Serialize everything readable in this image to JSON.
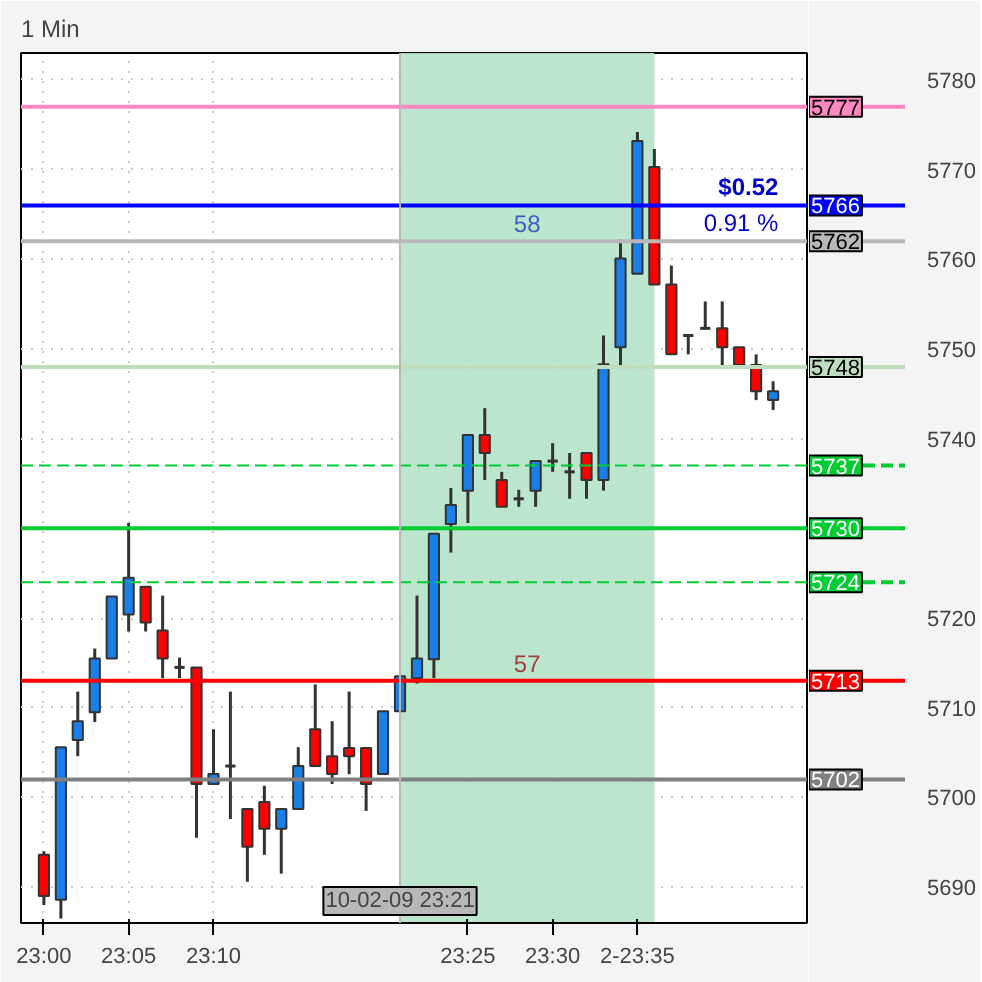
{
  "chart_data": {
    "type": "candlestick",
    "title": "1 Min",
    "x": [
      23.0,
      23.0167,
      23.0333,
      23.05,
      23.0667,
      23.0833,
      23.1,
      23.1167,
      23.1333,
      23.15,
      23.1667,
      23.1833,
      23.2,
      23.2167,
      23.2333,
      23.25,
      23.2667,
      23.2833,
      23.3,
      23.3167,
      23.3333,
      23.35,
      23.3667,
      23.3833,
      23.4,
      23.4167,
      23.4333,
      23.45,
      23.4667,
      23.4833,
      23.5,
      23.5167,
      23.5333,
      23.55,
      23.5667,
      23.5833,
      23.6,
      23.6167,
      23.6333,
      23.65,
      23.6667,
      23.6833,
      23.7,
      23.7167
    ],
    "ohlc": [
      [
        5693.6,
        5694,
        5688,
        5689
      ],
      [
        5688.6,
        5705.6,
        5686.5,
        5705.6
      ],
      [
        5706.4,
        5711.8,
        5704.6,
        5708.5
      ],
      [
        5709.5,
        5716.6,
        5708.4,
        5715.5
      ],
      [
        5715.5,
        5722.4,
        5715.5,
        5722.4
      ],
      [
        5720.4,
        5730.6,
        5718.5,
        5724.5
      ],
      [
        5723.5,
        5723.5,
        5718.5,
        5719.5
      ],
      [
        5718.6,
        5722.5,
        5713.3,
        5715.5
      ],
      [
        5714.5,
        5715.6,
        5713.3,
        5714.5
      ],
      [
        5714.5,
        5714.5,
        5695.5,
        5701.5
      ],
      [
        5701.5,
        5707.6,
        5701.5,
        5702.6
      ],
      [
        5703.5,
        5711.8,
        5697.6,
        5703.5
      ],
      [
        5698.7,
        5698.7,
        5690.6,
        5694.5
      ],
      [
        5699.5,
        5701.3,
        5693.6,
        5696.5
      ],
      [
        5696.5,
        5698.7,
        5691.5,
        5698.7
      ],
      [
        5698.7,
        5705.6,
        5698.7,
        5703.5
      ],
      [
        5707.6,
        5712.6,
        5703.5,
        5703.5
      ],
      [
        5704.6,
        5708.5,
        5701.5,
        5702.6
      ],
      [
        5705.5,
        5711.8,
        5702.6,
        5704.6
      ],
      [
        5705.5,
        5705.5,
        5698.5,
        5701.5
      ],
      [
        5702.6,
        5709.6,
        5702.6,
        5709.6
      ],
      [
        5709.6,
        5713.5,
        5709.6,
        5713.5
      ],
      [
        5713.3,
        5722.5,
        5712.7,
        5715.5
      ],
      [
        5715.4,
        5729.4,
        5713.3,
        5729.4
      ],
      [
        5730.5,
        5734.5,
        5727.3,
        5732.6
      ],
      [
        5734.2,
        5740.4,
        5730.6,
        5740.4
      ],
      [
        5740.4,
        5743.4,
        5735.4,
        5738.4
      ],
      [
        5735.4,
        5736.3,
        5732.4,
        5732.4
      ],
      [
        5733.3,
        5734.3,
        5732.4,
        5733.3
      ],
      [
        5734.2,
        5737.5,
        5732.4,
        5737.5
      ],
      [
        5737.5,
        5739.5,
        5736.3,
        5737.5
      ],
      [
        5736.3,
        5738.4,
        5733.3,
        5736.3
      ],
      [
        5738.4,
        5738.4,
        5733.3,
        5735.4
      ],
      [
        5735.4,
        5751.5,
        5734.2,
        5748.3
      ],
      [
        5750.2,
        5762.2,
        5748.2,
        5760.1
      ],
      [
        5758.4,
        5774.2,
        5758.4,
        5773.2
      ],
      [
        5770.3,
        5772.3,
        5757.2,
        5757.2
      ],
      [
        5757.2,
        5759.3,
        5749.4,
        5749.4
      ],
      [
        5751.5,
        5751.5,
        5749.4,
        5751.5
      ],
      [
        5752.3,
        5755.3,
        5752.3,
        5752.3
      ],
      [
        5752.3,
        5755.3,
        5748.2,
        5750.2
      ],
      [
        5750.2,
        5750.2,
        5748.2,
        5748.2
      ],
      [
        5748.2,
        5749.4,
        5744.3,
        5745.3
      ],
      [
        5744.3,
        5746.4,
        5743.2,
        5745.3
      ]
    ],
    "colors": [
      "#ff0000",
      "#1a7fe8",
      "#1a7fe8",
      "#1a7fe8",
      "#1a7fe8",
      "#1a7fe8",
      "#ff0000",
      "#ff0000",
      "#333333",
      "#ff0000",
      "#1a7fe8",
      "#333333",
      "#ff0000",
      "#ff0000",
      "#1a7fe8",
      "#1a7fe8",
      "#ff0000",
      "#ff0000",
      "#ff0000",
      "#ff0000",
      "#1a7fe8",
      "#1a7fe8",
      "#1a7fe8",
      "#1a7fe8",
      "#1a7fe8",
      "#1a7fe8",
      "#ff0000",
      "#ff0000",
      "#333333",
      "#1a7fe8",
      "#333333",
      "#333333",
      "#ff0000",
      "#1a7fe8",
      "#1a7fe8",
      "#1a7fe8",
      "#ff0000",
      "#ff0000",
      "#333333",
      "#333333",
      "#ff0000",
      "#ff0000",
      "#ff0000",
      "#1a7fe8"
    ],
    "xlim": [
      22.9775,
      23.75
    ],
    "ylim": [
      5686,
      5783
    ],
    "xticks": [
      {
        "value": 23.0,
        "label": "23:00"
      },
      {
        "value": 23.0833,
        "label": "23:05"
      },
      {
        "value": 23.1667,
        "label": "23:10"
      },
      {
        "value": 23.4167,
        "label": "23:25"
      },
      {
        "value": 23.5,
        "label": "23:30"
      },
      {
        "value": 23.5833,
        "label": "2-23:35"
      }
    ],
    "yticks": [
      5690,
      5700,
      5710,
      5720,
      5740,
      5750,
      5760,
      5770,
      5780
    ],
    "grid": true,
    "ref_lines": [
      {
        "axis": "y",
        "value": 5777,
        "label": "5777",
        "color": "#ff88c0"
      },
      {
        "axis": "y",
        "value": 5766,
        "label": "5766",
        "color": "#0000ff"
      },
      {
        "axis": "y",
        "value": 5762,
        "label": "5762",
        "color": "#b8b8b8"
      },
      {
        "axis": "y",
        "value": 5748,
        "label": "5748",
        "color": "#c0dcc0"
      },
      {
        "axis": "y",
        "value": 5737,
        "label": "5737",
        "color": "#00cc33",
        "line_style": "dashed"
      },
      {
        "axis": "y",
        "value": 5730,
        "label": "5730",
        "color": "#00cc33"
      },
      {
        "axis": "y",
        "value": 5724,
        "label": "5724",
        "color": "#00cc33",
        "line_style": "dashed"
      },
      {
        "axis": "y",
        "value": 5713,
        "label": "5713",
        "color": "#ff0000"
      },
      {
        "axis": "y",
        "value": 5702,
        "label": "5702",
        "color": "#808080"
      },
      {
        "axis": "x",
        "value": 23.35,
        "label": "10-02-09 23:21",
        "color": "#b8b8b8"
      }
    ],
    "bands": [
      {
        "axis": "x",
        "from": 23.35,
        "to": 23.6,
        "color": "#b4e2c8"
      }
    ],
    "annotations": [
      "58",
      "57",
      "$0.52",
      "0.91 %"
    ]
  }
}
